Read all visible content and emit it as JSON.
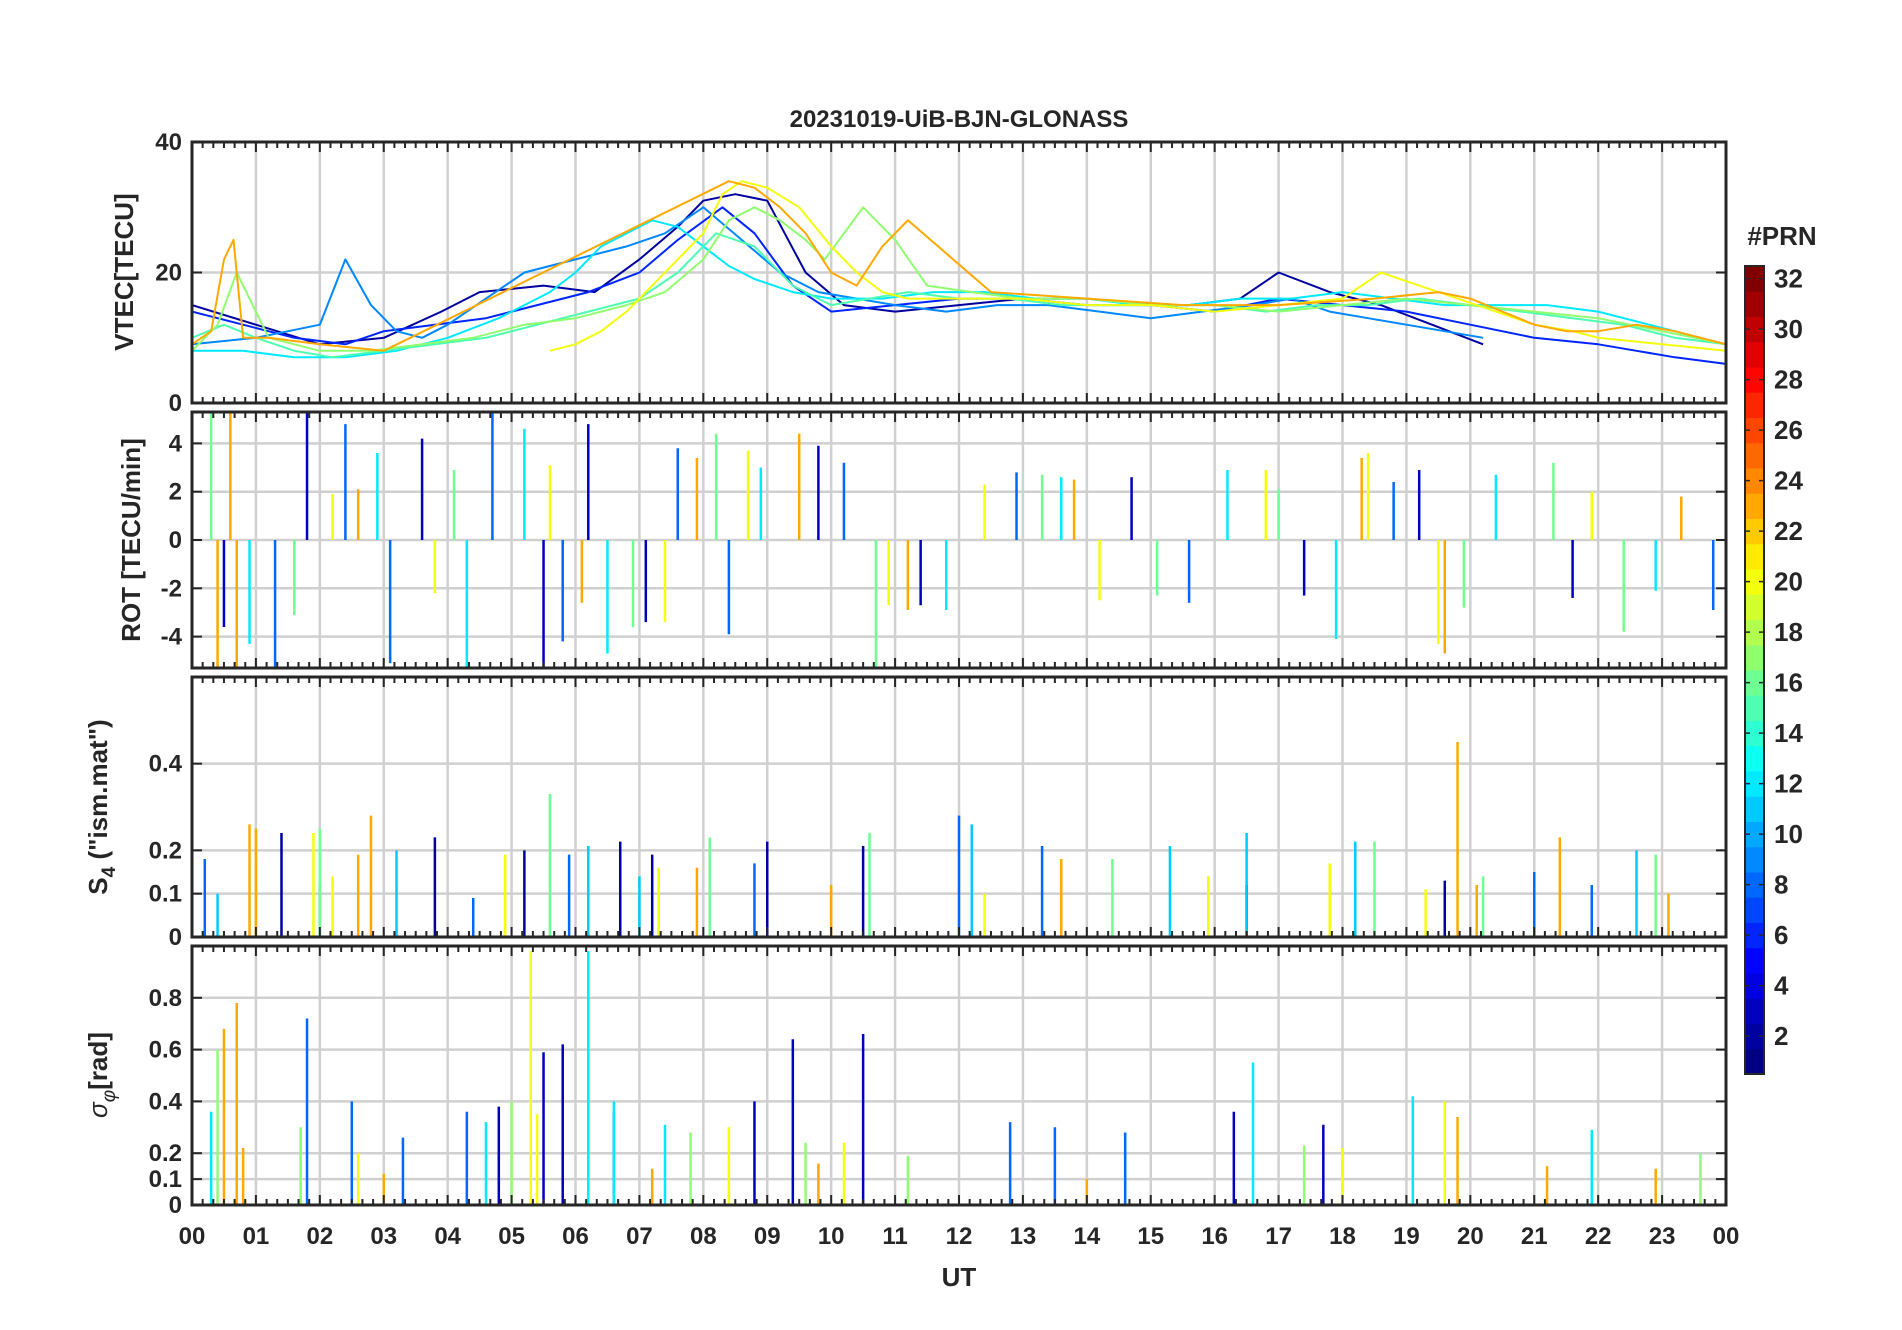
{
  "chart_data": [
    {
      "type": "line",
      "title": "20231019-UiB-BJN-GLONASS",
      "ylabel": "VTEC[TECU]",
      "xlabel": "",
      "xlim": [
        0,
        24
      ],
      "ylim": [
        0,
        40
      ],
      "yticks": [
        0,
        20,
        40
      ],
      "grid": true,
      "series": [
        {
          "prn": 2,
          "x": [
            0.0,
            1.0,
            2.0,
            3.0,
            3.9,
            4.5,
            5.5,
            6.3,
            7.0,
            7.6,
            8.0,
            8.5,
            9.0,
            9.6,
            10.2,
            11.0,
            12.0,
            13.0,
            14.0,
            15.0,
            15.6,
            16.4,
            17.0,
            17.8,
            18.6,
            19.4,
            20.2
          ],
          "y": [
            15,
            12,
            9,
            10,
            14,
            17,
            18,
            17,
            22,
            27,
            31,
            32,
            31,
            20,
            15,
            14,
            15,
            16,
            16,
            15,
            15,
            16,
            20,
            17,
            15,
            12,
            9
          ]
        },
        {
          "prn": 6,
          "x": [
            0.0,
            0.8,
            1.6,
            2.4,
            3.0,
            3.8,
            4.6,
            5.4,
            6.2,
            7.0,
            7.6,
            8.3,
            8.8,
            9.4,
            10.0,
            11.0,
            12.0,
            13.0,
            14.0,
            15.0,
            16.0,
            17.0,
            18.0,
            19.0,
            20.0,
            21.0,
            22.0,
            22.6,
            23.2,
            24.0
          ],
          "y": [
            14,
            12,
            10,
            9,
            11,
            12,
            13,
            15,
            17,
            20,
            25,
            30,
            26,
            18,
            14,
            15,
            16,
            16,
            15,
            15,
            14,
            16,
            15,
            14,
            12,
            10,
            9,
            8,
            7,
            6
          ]
        },
        {
          "prn": 9,
          "x": [
            0.0,
            1.0,
            2.0,
            2.4,
            2.8,
            3.2,
            3.6,
            4.0,
            4.6,
            5.2,
            6.0,
            6.8,
            7.4,
            8.0,
            8.6,
            9.2,
            9.8,
            10.4,
            11.0,
            11.8,
            12.6,
            13.4,
            14.2,
            15.0,
            15.8,
            16.6,
            17.2,
            17.8,
            18.4,
            19.0,
            19.6,
            20.2
          ],
          "y": [
            9,
            10,
            12,
            22,
            15,
            11,
            10,
            12,
            16,
            20,
            22,
            24,
            26,
            30,
            25,
            20,
            17,
            16,
            15,
            14,
            15,
            15,
            14,
            13,
            14,
            15,
            16,
            14,
            13,
            12,
            11,
            10
          ]
        },
        {
          "prn": 12,
          "x": [
            0.0,
            0.8,
            1.6,
            2.4,
            3.2,
            4.0,
            4.8,
            5.6,
            6.0,
            6.4,
            6.8,
            7.2,
            7.6,
            8.0,
            8.4,
            8.8,
            9.4,
            10.0,
            10.8,
            11.6,
            12.4,
            13.2,
            14.0,
            14.8,
            15.6,
            16.4,
            17.2,
            18.0,
            18.8,
            19.6,
            20.4,
            21.2,
            22.0,
            22.8,
            23.6,
            24.0
          ],
          "y": [
            8,
            8,
            7,
            7,
            8,
            10,
            13,
            17,
            20,
            24,
            26,
            28,
            27,
            24,
            21,
            19,
            17,
            16,
            16,
            17,
            17,
            16,
            16,
            15,
            15,
            16,
            16,
            17,
            16,
            15,
            15,
            15,
            14,
            12,
            10,
            9
          ]
        },
        {
          "prn": 15,
          "x": [
            0.0,
            0.5,
            1.0,
            1.6,
            2.2,
            3.0,
            3.8,
            4.6,
            5.4,
            6.2,
            7.0,
            7.6,
            8.2,
            8.8,
            9.4,
            10.0,
            10.6,
            11.2,
            12.0,
            12.8,
            13.6,
            14.4,
            15.2,
            16.0,
            16.8,
            17.6,
            18.4,
            19.2,
            20.0,
            20.8,
            21.6,
            22.4,
            23.2,
            24.0
          ],
          "y": [
            10,
            12,
            10,
            8,
            7,
            8,
            9,
            10,
            12,
            14,
            16,
            20,
            26,
            24,
            18,
            15,
            16,
            17,
            16,
            16,
            15,
            15,
            15,
            15,
            14,
            15,
            15,
            16,
            15,
            14,
            13,
            12,
            10,
            9
          ]
        },
        {
          "prn": 17,
          "x": [
            0.0,
            0.4,
            0.7,
            1.2,
            2.0,
            2.8,
            3.6,
            4.4,
            5.2,
            6.0,
            6.8,
            7.4,
            8.0,
            8.4,
            8.8,
            9.2,
            9.6,
            9.9,
            10.5,
            11.0,
            11.5,
            12.2,
            13.0,
            14.0,
            15.0,
            16.0,
            17.0,
            18.0,
            19.0,
            20.0,
            21.0,
            22.0,
            23.0,
            24.0
          ],
          "y": [
            8,
            12,
            20,
            10,
            8,
            8,
            9,
            10,
            12,
            13,
            15,
            17,
            22,
            28,
            30,
            28,
            25,
            22,
            30,
            25,
            18,
            17,
            16,
            16,
            15,
            15,
            14,
            15,
            16,
            15,
            14,
            13,
            11,
            9
          ]
        },
        {
          "prn": 20,
          "x": [
            5.6,
            6.0,
            6.4,
            6.8,
            7.2,
            7.6,
            8.0,
            8.3,
            8.6,
            9.0,
            9.5,
            10.0,
            10.4,
            10.8,
            11.2,
            12.0,
            13.0,
            14.0,
            15.0,
            16.0,
            17.0,
            18.0,
            18.6,
            19.2,
            19.8,
            20.4,
            21.0,
            21.6,
            22.0,
            23.0,
            24.0
          ],
          "y": [
            8,
            9,
            11,
            14,
            18,
            22,
            26,
            32,
            34,
            33,
            30,
            24,
            20,
            17,
            16,
            16,
            16,
            15,
            15,
            14,
            15,
            16,
            20,
            18,
            16,
            14,
            12,
            11,
            10,
            9,
            8
          ]
        },
        {
          "prn": 23,
          "x": [
            0.0,
            0.3,
            0.5,
            0.65,
            0.8,
            1.2,
            2.0,
            3.0,
            8.4,
            8.8,
            9.2,
            9.6,
            10.0,
            10.4,
            10.8,
            11.2,
            12.5,
            14.0,
            15.5,
            17.0,
            18.5,
            19.5,
            20.0,
            20.5,
            21.0,
            21.5,
            22.0,
            22.6,
            23.2,
            24.0
          ],
          "y": [
            9,
            11,
            22,
            25,
            10,
            10,
            9,
            8,
            34,
            33,
            30,
            26,
            20,
            18,
            24,
            28,
            17,
            16,
            15,
            15,
            16,
            17,
            16,
            14,
            12,
            11,
            11,
            12,
            11,
            9
          ]
        }
      ]
    },
    {
      "type": "line",
      "title": "",
      "ylabel": "ROT [TECU/min]",
      "xlabel": "",
      "xlim": [
        0,
        24
      ],
      "ylim": [
        -5.3,
        5.3
      ],
      "yticks": [
        -4,
        -2,
        0,
        2,
        4
      ],
      "grid": true,
      "series": [
        {
          "prn": 3,
          "x": [
            0.5,
            1.8,
            3.6,
            5.5,
            6.2,
            7.1,
            9.8,
            11.4,
            14.7,
            17.4,
            19.2,
            21.6
          ],
          "y": [
            -3.6,
            5.3,
            4.2,
            -5.3,
            4.8,
            -3.4,
            3.9,
            -2.7,
            2.6,
            -2.3,
            2.9,
            -2.4
          ]
        },
        {
          "prn": 8,
          "x": [
            1.3,
            2.4,
            3.1,
            4.7,
            5.8,
            7.6,
            8.4,
            10.2,
            12.9,
            15.6,
            18.8,
            23.8
          ],
          "y": [
            -5.3,
            4.8,
            -5.1,
            5.3,
            -4.2,
            3.8,
            -3.9,
            3.2,
            2.8,
            -2.6,
            2.4,
            -2.9
          ]
        },
        {
          "prn": 12,
          "x": [
            0.9,
            2.9,
            4.3,
            5.2,
            6.5,
            8.9,
            11.8,
            13.6,
            16.2,
            17.9,
            20.4,
            22.9
          ],
          "y": [
            -4.3,
            3.6,
            -5.3,
            4.6,
            -4.7,
            3.0,
            -2.9,
            2.6,
            2.9,
            -4.1,
            2.7,
            -2.1
          ]
        },
        {
          "prn": 16,
          "x": [
            0.3,
            1.6,
            4.1,
            6.9,
            8.2,
            10.7,
            13.3,
            15.1,
            17.0,
            19.9,
            21.3,
            22.4
          ],
          "y": [
            5.3,
            -3.1,
            2.9,
            -3.6,
            4.4,
            -5.3,
            2.7,
            -2.3,
            2.1,
            -2.8,
            3.2,
            -3.8
          ]
        },
        {
          "prn": 20,
          "x": [
            2.2,
            3.8,
            5.6,
            7.4,
            8.7,
            10.9,
            12.4,
            14.2,
            16.8,
            18.4,
            19.5,
            21.9
          ],
          "y": [
            1.9,
            -2.2,
            3.1,
            -3.4,
            3.7,
            -2.7,
            2.3,
            -2.5,
            2.9,
            3.6,
            -4.3,
            2.0
          ]
        },
        {
          "prn": 23,
          "x": [
            0.4,
            0.6,
            0.7,
            2.6,
            6.1,
            7.9,
            9.5,
            11.2,
            13.8,
            18.3,
            19.6,
            23.3
          ],
          "y": [
            -5.3,
            5.3,
            -5.3,
            2.1,
            -2.6,
            3.4,
            4.4,
            -2.9,
            2.5,
            3.4,
            -4.7,
            1.8
          ]
        }
      ]
    },
    {
      "type": "line",
      "title": "",
      "ylabel": "S4 (\"ism.mat\")",
      "xlabel": "",
      "xlim": [
        0,
        24
      ],
      "ylim": [
        0,
        0.6
      ],
      "yticks": [
        0,
        0.1,
        0.2,
        0.4
      ],
      "grid": true,
      "series": [
        {
          "prn": 2,
          "x": [
            1.4,
            3.8,
            5.2,
            6.7,
            7.2,
            9.0,
            10.5,
            16.5,
            19.6
          ],
          "y": [
            0.24,
            0.23,
            0.2,
            0.22,
            0.19,
            0.22,
            0.21,
            0.12,
            0.13
          ]
        },
        {
          "prn": 8,
          "x": [
            0.2,
            2.0,
            4.4,
            5.9,
            8.8,
            12.0,
            13.3,
            21.0,
            21.9
          ],
          "y": [
            0.18,
            0.12,
            0.09,
            0.19,
            0.17,
            0.28,
            0.21,
            0.15,
            0.12
          ]
        },
        {
          "prn": 11,
          "x": [
            0.4,
            3.2,
            6.2,
            7.0,
            12.2,
            15.3,
            16.5,
            18.2,
            22.6
          ],
          "y": [
            0.1,
            0.2,
            0.21,
            0.14,
            0.26,
            0.21,
            0.24,
            0.22,
            0.2
          ]
        },
        {
          "prn": 16,
          "x": [
            1.0,
            2.0,
            5.6,
            8.1,
            10.6,
            14.4,
            18.5,
            20.2,
            22.9
          ],
          "y": [
            0.17,
            0.25,
            0.33,
            0.23,
            0.24,
            0.18,
            0.22,
            0.14,
            0.19
          ]
        },
        {
          "prn": 20,
          "x": [
            1.9,
            2.2,
            4.9,
            7.3,
            12.4,
            15.9,
            17.8,
            19.3
          ],
          "y": [
            0.24,
            0.14,
            0.19,
            0.16,
            0.1,
            0.14,
            0.17,
            0.11
          ]
        },
        {
          "prn": 23,
          "x": [
            0.9,
            1.0,
            2.6,
            2.8,
            7.9,
            10.0,
            13.6,
            19.8,
            20.1,
            21.4,
            23.1
          ],
          "y": [
            0.26,
            0.25,
            0.19,
            0.28,
            0.16,
            0.12,
            0.18,
            0.45,
            0.12,
            0.23,
            0.1
          ]
        }
      ]
    },
    {
      "type": "line",
      "title": "",
      "ylabel": "σφ[rad]",
      "xlabel": "UT",
      "xlim": [
        0,
        24
      ],
      "ylim": [
        0,
        1.0
      ],
      "yticks": [
        0,
        0.1,
        0.2,
        0.4,
        0.6,
        0.8
      ],
      "grid": true,
      "series": [
        {
          "prn": 3,
          "x": [
            4.8,
            5.5,
            5.8,
            8.8,
            9.4,
            10.5,
            16.3,
            17.7
          ],
          "y": [
            0.38,
            0.59,
            0.62,
            0.4,
            0.64,
            0.66,
            0.36,
            0.31
          ]
        },
        {
          "prn": 8,
          "x": [
            1.8,
            2.5,
            3.3,
            4.3,
            6.6,
            12.8,
            13.5,
            14.6
          ],
          "y": [
            0.72,
            0.4,
            0.26,
            0.36,
            0.36,
            0.32,
            0.3,
            0.28
          ]
        },
        {
          "prn": 12,
          "x": [
            0.3,
            4.6,
            6.2,
            6.6,
            7.4,
            16.6,
            19.1,
            21.9
          ],
          "y": [
            0.36,
            0.32,
            0.98,
            0.4,
            0.31,
            0.55,
            0.42,
            0.29
          ]
        },
        {
          "prn": 17,
          "x": [
            0.4,
            1.7,
            5.0,
            7.8,
            9.6,
            11.2,
            17.4,
            23.6
          ],
          "y": [
            0.6,
            0.3,
            0.4,
            0.28,
            0.24,
            0.19,
            0.23,
            0.2
          ]
        },
        {
          "prn": 20,
          "x": [
            2.6,
            5.3,
            5.4,
            8.4,
            10.2,
            18.0,
            19.6
          ],
          "y": [
            0.2,
            0.98,
            0.35,
            0.3,
            0.24,
            0.22,
            0.4
          ]
        },
        {
          "prn": 23,
          "x": [
            0.5,
            0.7,
            0.8,
            3.0,
            7.2,
            9.8,
            14.0,
            19.8,
            21.2,
            22.9
          ],
          "y": [
            0.68,
            0.78,
            0.22,
            0.12,
            0.14,
            0.16,
            0.1,
            0.34,
            0.15,
            0.14
          ]
        }
      ]
    }
  ],
  "x_axis": {
    "tick_labels": [
      "00",
      "01",
      "02",
      "03",
      "04",
      "05",
      "06",
      "07",
      "08",
      "09",
      "10",
      "11",
      "12",
      "13",
      "14",
      "15",
      "16",
      "17",
      "18",
      "19",
      "20",
      "21",
      "22",
      "23",
      "00"
    ],
    "label": "UT"
  },
  "colorbar": {
    "title": "#PRN",
    "colormap": "jet",
    "range": [
      1,
      32
    ],
    "tick_labels": [
      "32",
      "30",
      "28",
      "26",
      "24",
      "22",
      "20",
      "18",
      "16",
      "14",
      "12",
      "10",
      "8",
      "6",
      "4",
      "2"
    ],
    "tick_values": [
      32,
      30,
      28,
      26,
      24,
      22,
      20,
      18,
      16,
      14,
      12,
      10,
      8,
      6,
      4,
      2
    ]
  },
  "panel_ylabels": {
    "vtec": "VTEC[TECU]",
    "rot": "ROT [TECU/min]",
    "s4_main": "S",
    "s4_sub": "4",
    "s4_rest": " (\"ism.mat\")",
    "sigma_main": "σ",
    "sigma_sub": "φ",
    "sigma_rest": "[rad]"
  },
  "colors": {
    "axis": "#262626",
    "grid": "#d0d0d0"
  }
}
